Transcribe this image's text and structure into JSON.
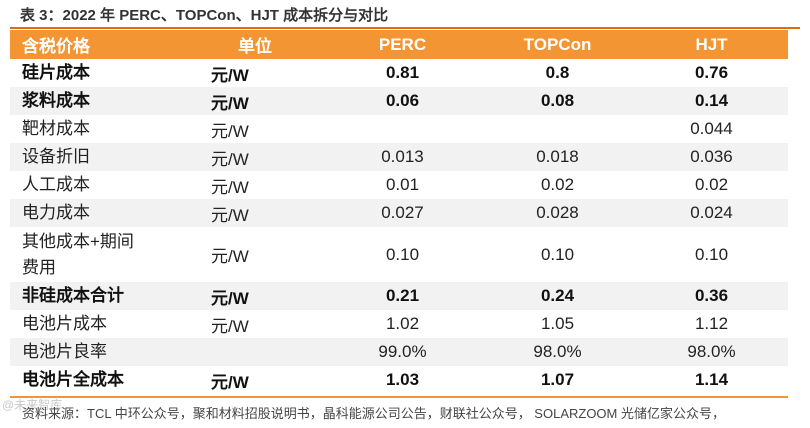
{
  "caption": "表 3：2022 年 PERC、TOPCon、HJT 成本拆分与对比",
  "header": {
    "col_name": "含税价格",
    "col_unit": "单位",
    "col_perc": "PERC",
    "col_topcon": "TOPCon",
    "col_hjt": "HJT"
  },
  "rows": [
    {
      "name": "硅片成本",
      "unit": "元/W",
      "perc": "0.81",
      "topcon": "0.8",
      "hjt": "0.76"
    },
    {
      "name": "浆料成本",
      "unit": "元/W",
      "perc": "0.06",
      "topcon": "0.08",
      "hjt": "0.14"
    },
    {
      "name": "靶材成本",
      "unit": "元/W",
      "perc": "",
      "topcon": "",
      "hjt": "0.044"
    },
    {
      "name": "设备折旧",
      "unit": "元/W",
      "perc": "0.013",
      "topcon": "0.018",
      "hjt": "0.036"
    },
    {
      "name": "人工成本",
      "unit": "元/W",
      "perc": "0.01",
      "topcon": "0.02",
      "hjt": "0.02"
    },
    {
      "name": "电力成本",
      "unit": "元/W",
      "perc": "0.027",
      "topcon": "0.028",
      "hjt": "0.024"
    },
    {
      "name": "其他成本+期间费用",
      "unit": "元/W",
      "perc": "0.10",
      "topcon": "0.10",
      "hjt": "0.10"
    },
    {
      "name": "非硅成本合计",
      "unit": "元/W",
      "perc": "0.21",
      "topcon": "0.24",
      "hjt": "0.36"
    },
    {
      "name": "电池片成本",
      "unit": "元/W",
      "perc": "1.02",
      "topcon": "1.05",
      "hjt": "1.12"
    },
    {
      "name": "电池片良率",
      "unit": "",
      "perc": "99.0%",
      "topcon": "98.0%",
      "hjt": "98.0%"
    },
    {
      "name": "电池片全成本",
      "unit": "元/W",
      "perc": "1.03",
      "topcon": "1.07",
      "hjt": "1.14"
    }
  ],
  "source": "资料来源：TCL 中环公众号，聚和材料招股说明书，晶科能源公司公告，财联社公众号， SOLARZOOM 光储亿家公众号，",
  "watermark": "@未来智库"
}
